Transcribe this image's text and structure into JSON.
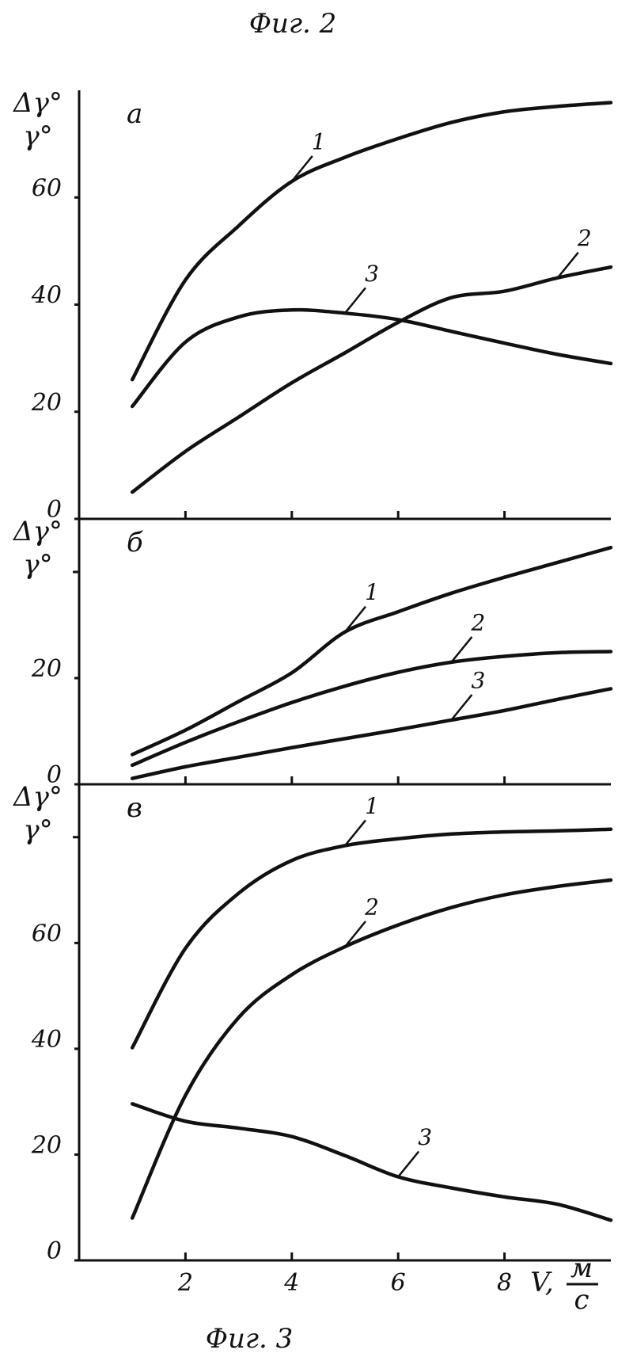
{
  "title": "Фиг. 2",
  "caption": "Фиг. 3",
  "chart_data": [
    {
      "type": "line",
      "panel_label": "а",
      "ylabel": [
        "Δγ°",
        "γ°"
      ],
      "x": [
        1,
        2,
        3,
        4,
        5,
        6,
        7,
        8,
        9,
        10
      ],
      "xlim": [
        0,
        10
      ],
      "ylim": [
        0,
        80
      ],
      "xticks": [
        2,
        4,
        6,
        8
      ],
      "xtick_labels": false,
      "yticks": [
        0,
        20,
        40,
        60
      ],
      "series": [
        {
          "name": "1",
          "color": "#111111",
          "values": [
            26,
            44.6,
            54.7,
            63,
            67.5,
            71,
            74,
            76,
            77,
            77.7
          ]
        },
        {
          "name": "2",
          "color": "#111111",
          "values": [
            5,
            12.6,
            19,
            25.4,
            31,
            36.7,
            41.3,
            42.5,
            45,
            47
          ]
        },
        {
          "name": "3",
          "color": "#111111",
          "values": [
            21,
            33,
            37.7,
            39,
            38.4,
            37.2,
            35,
            32.8,
            30.7,
            29
          ]
        }
      ]
    },
    {
      "type": "line",
      "panel_label": "б",
      "ylabel": [
        "Δγ°",
        "γ°"
      ],
      "x": [
        1,
        2,
        3,
        4,
        5,
        6,
        7,
        8,
        9,
        10
      ],
      "xlim": [
        0,
        10
      ],
      "ylim": [
        0,
        50
      ],
      "xticks": [
        2,
        4,
        6,
        8
      ],
      "xtick_labels": false,
      "yticks": [
        0,
        20
      ],
      "minor_yticks": [
        40
      ],
      "series": [
        {
          "name": "1",
          "color": "#111111",
          "values": [
            5.6,
            10.2,
            15.6,
            21,
            28.7,
            32.5,
            36,
            39,
            41.8,
            44.6
          ]
        },
        {
          "name": "2",
          "color": "#111111",
          "values": [
            3.6,
            7.9,
            11.8,
            15.4,
            18.5,
            21.1,
            23,
            24.1,
            24.8,
            25
          ]
        },
        {
          "name": "3",
          "color": "#111111",
          "values": [
            1.1,
            3.3,
            5.1,
            6.9,
            8.6,
            10.3,
            12.1,
            13.9,
            16,
            18
          ]
        }
      ]
    },
    {
      "type": "line",
      "panel_label": "в",
      "ylabel": [
        "Δγ°",
        "γ°"
      ],
      "xlabel": "V,",
      "xunit": {
        "num": "м",
        "den": "с"
      },
      "x": [
        1,
        2,
        3,
        4,
        5,
        6,
        7,
        8,
        9,
        10
      ],
      "xlim": [
        0,
        10
      ],
      "ylim": [
        0,
        90
      ],
      "xticks": [
        2,
        4,
        6,
        8
      ],
      "xtick_labels": true,
      "yticks": [
        0,
        20,
        40,
        60
      ],
      "minor_yticks": [
        80
      ],
      "series": [
        {
          "name": "1",
          "color": "#111111",
          "values": [
            40.2,
            59,
            69.4,
            75.6,
            78.4,
            79.7,
            80.6,
            81,
            81.2,
            81.5
          ]
        },
        {
          "name": "2",
          "color": "#111111",
          "values": [
            8,
            31.2,
            45.9,
            54,
            59.3,
            63.4,
            66.7,
            69.1,
            70.7,
            71.9
          ]
        },
        {
          "name": "3",
          "color": "#111111",
          "values": [
            29.6,
            26.3,
            25,
            23.4,
            19.8,
            15.8,
            13.7,
            12,
            10.6,
            7.6
          ]
        }
      ]
    }
  ]
}
